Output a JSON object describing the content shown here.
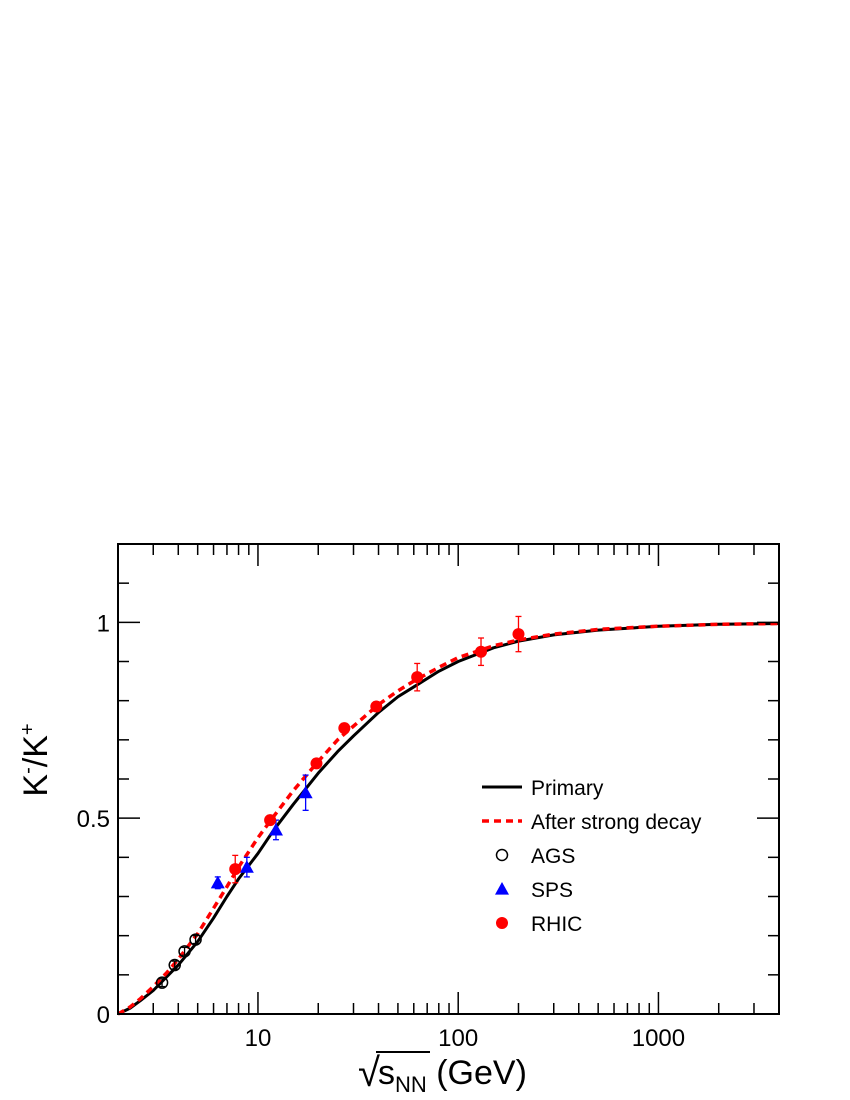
{
  "chart_data": {
    "type": "scatter",
    "x_axis": {
      "scale": "log",
      "range": [
        2,
        4000
      ],
      "ticks": [
        10,
        100,
        1000
      ],
      "tick_labels": [
        "10",
        "100",
        "1000"
      ],
      "label_sqrt": "√",
      "label_main": "s",
      "label_sub": "NN",
      "label_unit": " (GeV)"
    },
    "y_axis": {
      "scale": "linear",
      "range": [
        0,
        1.2
      ],
      "ticks": [
        0,
        0.5,
        1
      ],
      "tick_labels": [
        "0",
        "0.5",
        "1"
      ],
      "label_k1": "K",
      "label_sup1": "-",
      "label_mid": "/K",
      "label_sup2": "+"
    },
    "grid": false,
    "legend_position": "right",
    "curves": [
      {
        "name": "Primary",
        "color": "#000000",
        "style": "solid",
        "points": [
          [
            2,
            0
          ],
          [
            2.3,
            0.015
          ],
          [
            2.6,
            0.035
          ],
          [
            3,
            0.06
          ],
          [
            3.5,
            0.095
          ],
          [
            4,
            0.125
          ],
          [
            5,
            0.185
          ],
          [
            6,
            0.245
          ],
          [
            7,
            0.3
          ],
          [
            8,
            0.345
          ],
          [
            10,
            0.41
          ],
          [
            12,
            0.47
          ],
          [
            15,
            0.535
          ],
          [
            20,
            0.615
          ],
          [
            25,
            0.67
          ],
          [
            30,
            0.71
          ],
          [
            40,
            0.77
          ],
          [
            50,
            0.81
          ],
          [
            60,
            0.835
          ],
          [
            80,
            0.875
          ],
          [
            100,
            0.9
          ],
          [
            150,
            0.935
          ],
          [
            200,
            0.952
          ],
          [
            300,
            0.968
          ],
          [
            500,
            0.98
          ],
          [
            1000,
            0.99
          ],
          [
            2000,
            0.995
          ],
          [
            4000,
            0.997
          ]
        ]
      },
      {
        "name": "After strong decay",
        "color": "#ff0000",
        "style": "dashed",
        "points": [
          [
            2,
            0
          ],
          [
            2.3,
            0.018
          ],
          [
            2.6,
            0.04
          ],
          [
            3,
            0.07
          ],
          [
            3.5,
            0.105
          ],
          [
            4,
            0.14
          ],
          [
            5,
            0.205
          ],
          [
            6,
            0.27
          ],
          [
            7,
            0.325
          ],
          [
            8,
            0.375
          ],
          [
            10,
            0.45
          ],
          [
            12,
            0.505
          ],
          [
            15,
            0.57
          ],
          [
            20,
            0.645
          ],
          [
            25,
            0.7
          ],
          [
            30,
            0.735
          ],
          [
            40,
            0.79
          ],
          [
            50,
            0.825
          ],
          [
            60,
            0.85
          ],
          [
            80,
            0.885
          ],
          [
            100,
            0.91
          ],
          [
            150,
            0.94
          ],
          [
            200,
            0.955
          ],
          [
            300,
            0.97
          ],
          [
            500,
            0.982
          ],
          [
            1000,
            0.99
          ],
          [
            2000,
            0.995
          ],
          [
            4000,
            0.997
          ]
        ]
      }
    ],
    "series": [
      {
        "name": "AGS",
        "marker": "open-circle",
        "color": "#000000",
        "points": [
          {
            "x": 3.32,
            "y": 0.08,
            "err": 0.01
          },
          {
            "x": 3.84,
            "y": 0.125,
            "err": 0.01
          },
          {
            "x": 4.3,
            "y": 0.16,
            "err": 0.01
          },
          {
            "x": 4.88,
            "y": 0.19,
            "err": 0.01
          }
        ]
      },
      {
        "name": "SPS",
        "marker": "triangle",
        "color": "#0000ff",
        "points": [
          {
            "x": 6.3,
            "y": 0.335,
            "err": 0.015
          },
          {
            "x": 8.8,
            "y": 0.375,
            "err": 0.025
          },
          {
            "x": 12.3,
            "y": 0.47,
            "err": 0.025
          },
          {
            "x": 17.3,
            "y": 0.565,
            "err": 0.045
          }
        ]
      },
      {
        "name": "RHIC",
        "marker": "filled-circle",
        "color": "#ff0000",
        "points": [
          {
            "x": 7.7,
            "y": 0.37,
            "err": 0.035
          },
          {
            "x": 11.5,
            "y": 0.495,
            "err": 0.012
          },
          {
            "x": 19.6,
            "y": 0.64,
            "err": 0.012
          },
          {
            "x": 27,
            "y": 0.73,
            "err": 0.012
          },
          {
            "x": 39,
            "y": 0.785,
            "err": 0.012
          },
          {
            "x": 62.4,
            "y": 0.86,
            "err": 0.035
          },
          {
            "x": 130,
            "y": 0.925,
            "err": 0.035
          },
          {
            "x": 200,
            "y": 0.97,
            "err": 0.045
          }
        ]
      }
    ]
  }
}
